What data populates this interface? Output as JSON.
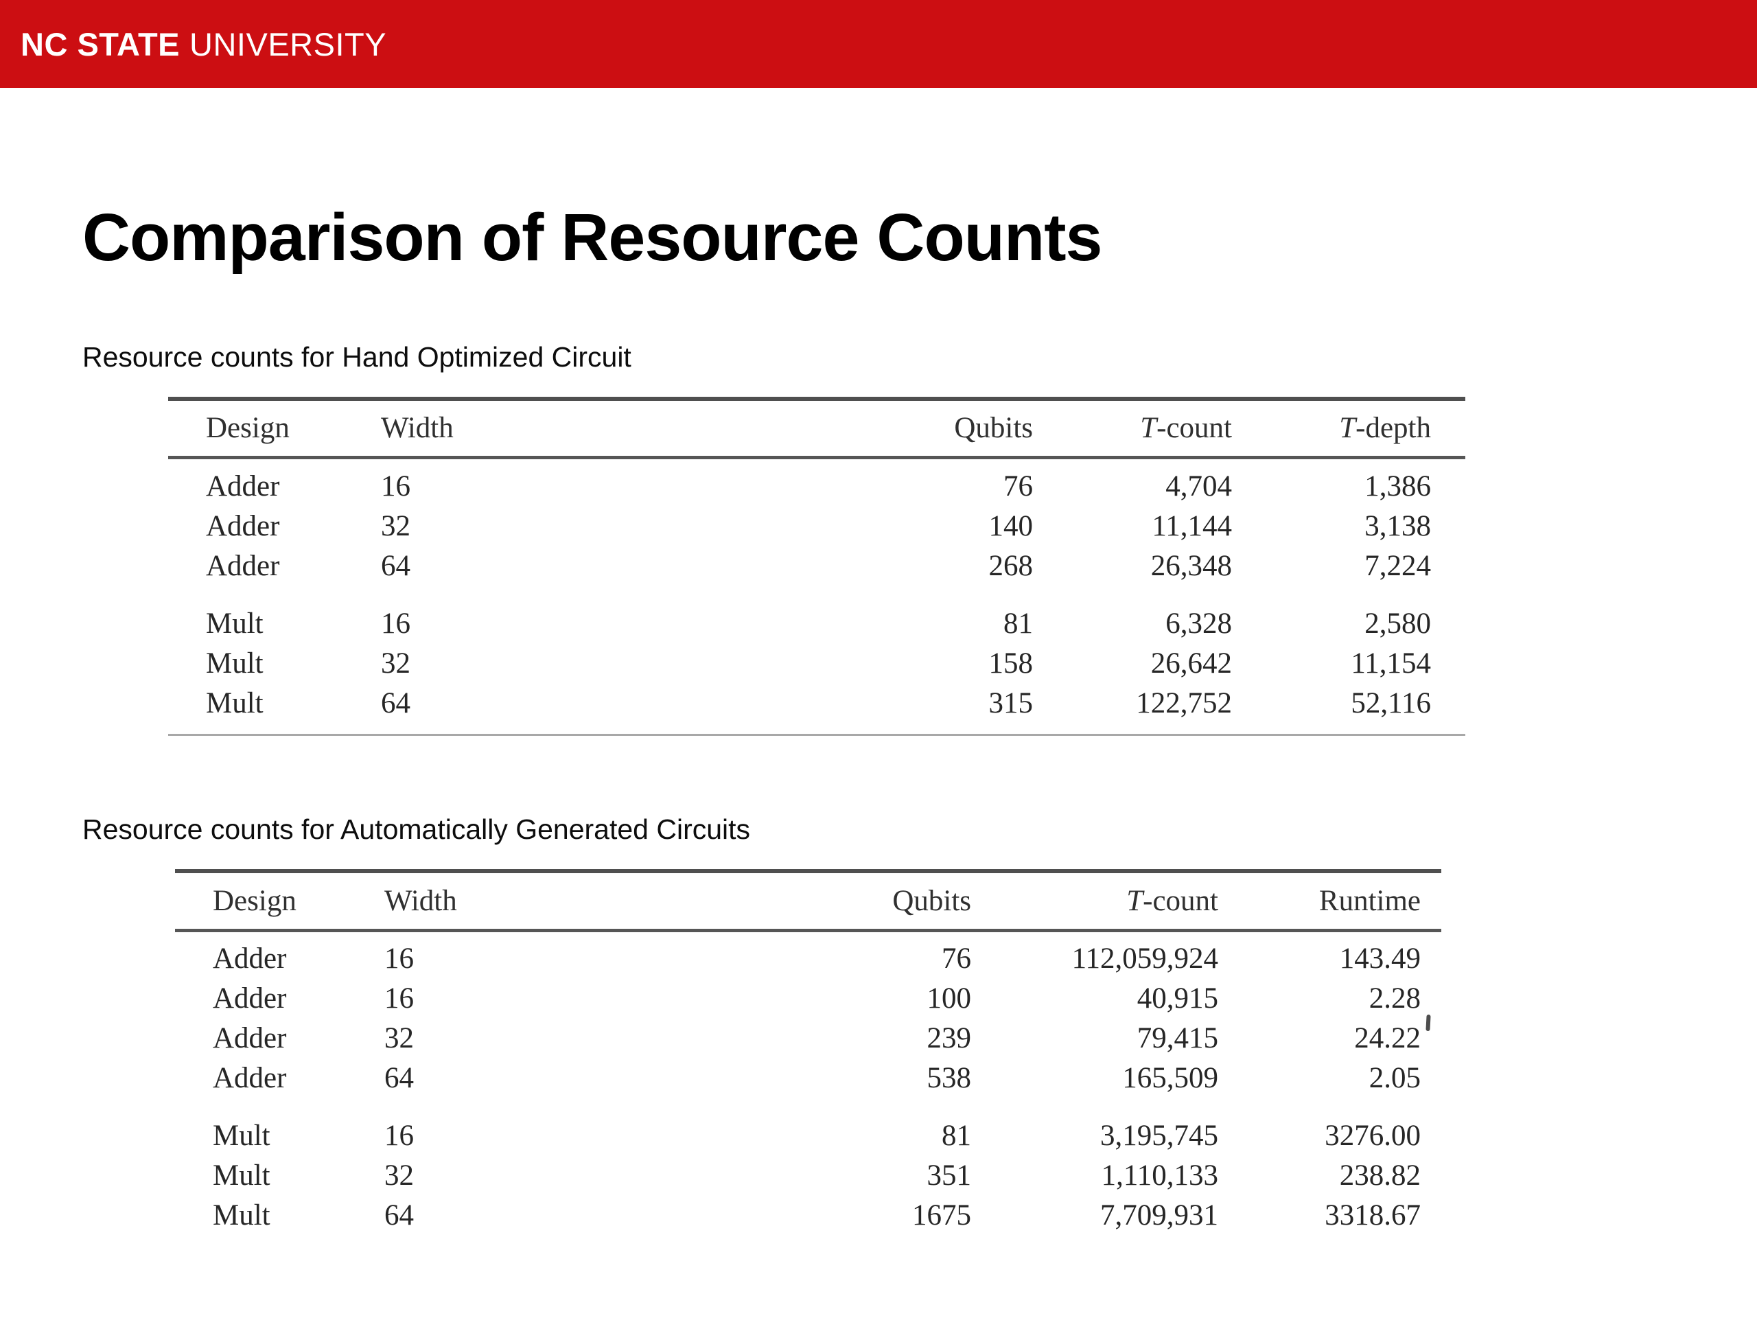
{
  "header": {
    "bar_color": "#cc0e12",
    "logo_bold": "NC STATE",
    "logo_light": "UNIVERSITY"
  },
  "page_title": "Comparison of Resource Counts",
  "tables": [
    {
      "caption": "Resource counts for Hand Optimized Circuit",
      "columns": [
        "Design",
        "Width",
        "Qubits",
        "T-count",
        "T-depth"
      ],
      "has_bottom_rule": true,
      "groups": [
        {
          "rows": [
            [
              "Adder",
              "16",
              "76",
              "4,704",
              "1,386"
            ],
            [
              "Adder",
              "32",
              "140",
              "11,144",
              "3,138"
            ],
            [
              "Adder",
              "64",
              "268",
              "26,348",
              "7,224"
            ]
          ]
        },
        {
          "rows": [
            [
              "Mult",
              "16",
              "81",
              "6,328",
              "2,580"
            ],
            [
              "Mult",
              "32",
              "158",
              "26,642",
              "11,154"
            ],
            [
              "Mult",
              "64",
              "315",
              "122,752",
              "52,116"
            ]
          ]
        }
      ]
    },
    {
      "caption": "Resource counts for Automatically Generated Circuits",
      "columns": [
        "Design",
        "Width",
        "Qubits",
        "T-count",
        "Runtime"
      ],
      "has_bottom_rule": false,
      "groups": [
        {
          "rows": [
            [
              "Adder",
              "16",
              "76",
              "112,059,924",
              "143.49"
            ],
            [
              "Adder",
              "16",
              "100",
              "40,915",
              "2.28"
            ],
            [
              "Adder",
              "32",
              "239",
              "79,415",
              "24.22"
            ],
            [
              "Adder",
              "64",
              "538",
              "165,509",
              "2.05"
            ]
          ]
        },
        {
          "rows": [
            [
              "Mult",
              "16",
              "81",
              "3,195,745",
              "3276.00"
            ],
            [
              "Mult",
              "32",
              "351",
              "1,110,133",
              "238.82"
            ],
            [
              "Mult",
              "64",
              "1675",
              "7,709,931",
              "3318.67"
            ]
          ]
        }
      ]
    }
  ]
}
